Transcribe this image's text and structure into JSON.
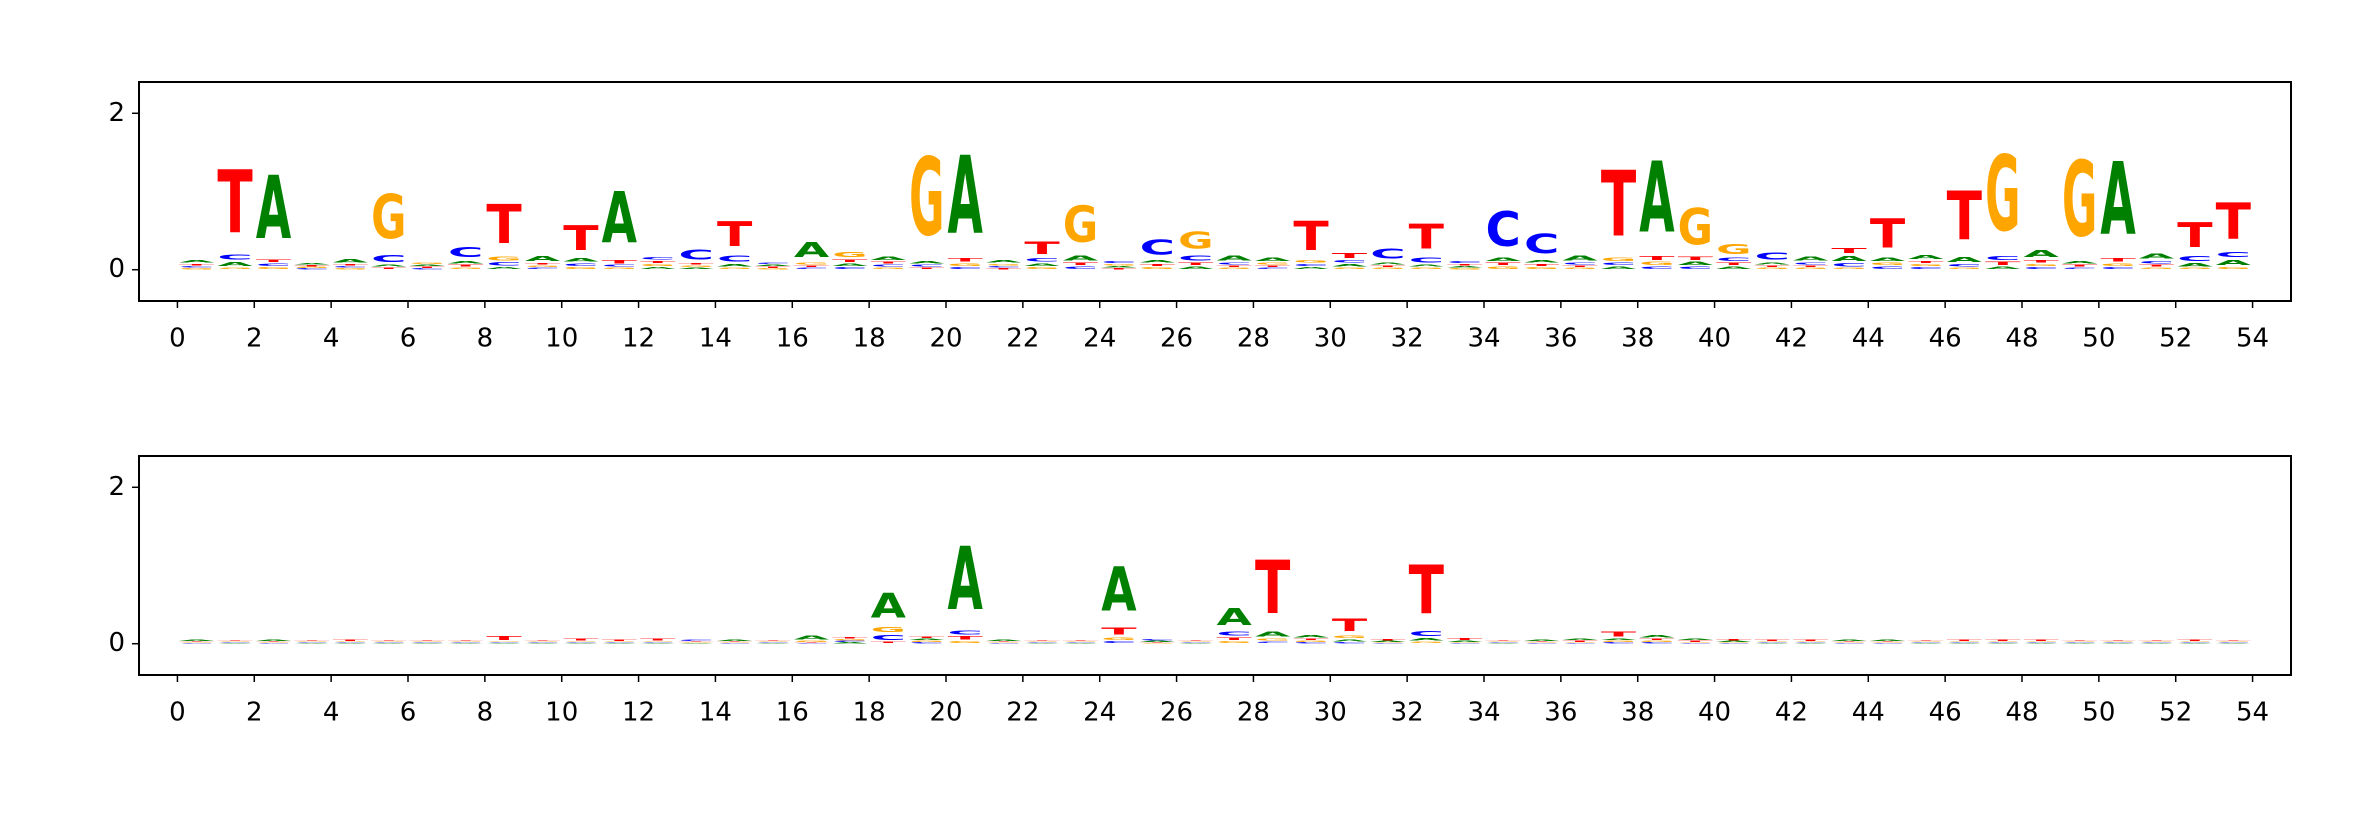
{
  "chart_data": [
    {
      "type": "logo",
      "x": [
        0.5,
        1.5,
        2.5,
        3.5,
        4.5,
        5.5,
        6.5,
        7.5,
        8.5,
        9.5,
        10.5,
        11.5,
        12.5,
        13.5,
        14.5,
        15.5,
        16.5,
        17.5,
        18.5,
        19.5,
        20.5,
        21.5,
        22.5,
        23.5,
        24.5,
        25.5,
        26.5,
        27.5,
        28.5,
        29.5,
        30.5,
        31.5,
        32.5,
        33.5,
        34.5,
        35.5,
        36.5,
        37.5,
        38.5,
        39.5,
        40.5,
        41.5,
        42.5,
        43.5,
        44.5,
        45.5,
        46.5,
        47.5,
        48.5,
        49.5,
        50.5,
        51.5,
        52.5,
        53.5
      ],
      "series": [
        {
          "name": "A",
          "color": "#008000",
          "values": [
            0.05,
            0.08,
            1.3,
            0.03,
            0.06,
            0.04,
            0.03,
            0.05,
            0.04,
            0.1,
            0.06,
            1.05,
            0.04,
            0.03,
            0.05,
            0.03,
            0.3,
            0.05,
            0.06,
            0.05,
            1.6,
            0.05,
            0.05,
            0.1,
            0.03,
            0.05,
            0.05,
            0.1,
            0.06,
            0.04,
            0.05,
            0.04,
            0.04,
            0.03,
            0.06,
            0.05,
            0.1,
            0.05,
            1.45,
            0.06,
            0.05,
            0.04,
            0.08,
            0.1,
            0.06,
            0.08,
            0.1,
            0.05,
            0.15,
            0.05,
            1.5,
            0.1,
            0.06,
            0.1
          ]
        },
        {
          "name": "C",
          "color": "#0000ff",
          "values": [
            0.03,
            0.1,
            0.05,
            0.02,
            0.03,
            0.15,
            0.02,
            0.2,
            0.06,
            0.03,
            0.05,
            0.04,
            0.05,
            0.2,
            0.12,
            0.03,
            0.03,
            0.04,
            0.04,
            0.04,
            0.04,
            0.03,
            0.06,
            0.05,
            0.04,
            0.3,
            0.1,
            0.04,
            0.03,
            0.04,
            0.05,
            0.2,
            0.1,
            0.04,
            0.7,
            0.4,
            0.04,
            0.05,
            0.05,
            0.05,
            0.06,
            0.15,
            0.04,
            0.06,
            0.05,
            0.04,
            0.05,
            0.08,
            0.04,
            0.03,
            0.04,
            0.05,
            0.1,
            0.1
          ]
        },
        {
          "name": "G",
          "color": "#ffa500",
          "values": [
            0.02,
            0.03,
            0.04,
            0.02,
            0.02,
            0.9,
            0.03,
            0.03,
            0.08,
            0.03,
            0.04,
            0.03,
            0.04,
            0.03,
            0.03,
            0.02,
            0.04,
            0.1,
            0.03,
            1.6,
            0.05,
            0.03,
            0.04,
            0.75,
            0.03,
            0.04,
            0.35,
            0.03,
            0.04,
            0.05,
            0.03,
            0.03,
            0.03,
            0.02,
            0.05,
            0.04,
            0.03,
            0.06,
            0.06,
            0.75,
            0.2,
            0.03,
            0.03,
            0.03,
            0.05,
            0.04,
            0.03,
            1.55,
            0.04,
            1.55,
            0.05,
            0.03,
            0.03,
            0.04
          ]
        },
        {
          "name": "T",
          "color": "#ff0000",
          "values": [
            0.03,
            1.3,
            0.05,
            0.02,
            0.03,
            0.03,
            0.02,
            0.04,
            0.8,
            0.03,
            0.5,
            0.06,
            0.04,
            0.03,
            0.5,
            0.02,
            0.03,
            0.05,
            0.04,
            0.03,
            0.06,
            0.02,
            0.25,
            0.05,
            0.02,
            0.04,
            0.05,
            0.03,
            0.03,
            0.6,
            0.1,
            0.03,
            0.5,
            0.03,
            0.05,
            0.04,
            0.03,
            1.35,
            0.08,
            0.06,
            0.05,
            0.03,
            0.03,
            0.1,
            0.6,
            0.04,
            1.0,
            0.06,
            0.05,
            0.04,
            0.06,
            0.04,
            0.5,
            0.75
          ]
        }
      ],
      "xlim": [
        -1,
        55
      ],
      "ylim": [
        -0.4,
        2.4
      ],
      "xticks": [
        0,
        2,
        4,
        6,
        8,
        10,
        12,
        14,
        16,
        18,
        20,
        22,
        24,
        26,
        28,
        30,
        32,
        34,
        36,
        38,
        40,
        42,
        44,
        46,
        48,
        50,
        52,
        54
      ],
      "yticks": [
        0,
        2
      ]
    },
    {
      "type": "logo",
      "x": [
        0.5,
        1.5,
        2.5,
        3.5,
        4.5,
        5.5,
        6.5,
        7.5,
        8.5,
        9.5,
        10.5,
        11.5,
        12.5,
        13.5,
        14.5,
        15.5,
        16.5,
        17.5,
        18.5,
        19.5,
        20.5,
        21.5,
        22.5,
        23.5,
        24.5,
        25.5,
        26.5,
        27.5,
        28.5,
        29.5,
        30.5,
        31.5,
        32.5,
        33.5,
        34.5,
        35.5,
        36.5,
        37.5,
        38.5,
        39.5,
        40.5,
        41.5,
        42.5,
        43.5,
        44.5,
        45.5,
        46.5,
        47.5,
        48.5,
        49.5,
        50.5,
        51.5,
        52.5,
        53.5
      ],
      "series": [
        {
          "name": "A",
          "color": "#008000",
          "values": [
            0.02,
            0.01,
            0.02,
            0.01,
            0.01,
            0.01,
            0.01,
            0.01,
            0.01,
            0.01,
            0.01,
            0.01,
            0.01,
            0.01,
            0.03,
            0.01,
            0.08,
            0.02,
            0.5,
            0.03,
            1.3,
            0.02,
            0.01,
            0.01,
            0.9,
            0.02,
            0.01,
            0.35,
            0.1,
            0.05,
            0.04,
            0.02,
            0.05,
            0.02,
            0.01,
            0.03,
            0.03,
            0.03,
            0.05,
            0.03,
            0.02,
            0.01,
            0.01,
            0.02,
            0.02,
            0.01,
            0.01,
            0.01,
            0.01,
            0.01,
            0.01,
            0.01,
            0.01,
            0.01
          ]
        },
        {
          "name": "C",
          "color": "#0000ff",
          "values": [
            0.01,
            0.01,
            0.01,
            0.01,
            0.01,
            0.01,
            0.01,
            0.01,
            0.01,
            0.01,
            0.01,
            0.01,
            0.01,
            0.02,
            0.01,
            0.01,
            0.01,
            0.02,
            0.1,
            0.02,
            0.08,
            0.01,
            0.01,
            0.01,
            0.04,
            0.02,
            0.01,
            0.08,
            0.03,
            0.02,
            0.02,
            0.01,
            0.1,
            0.01,
            0.01,
            0.01,
            0.01,
            0.02,
            0.02,
            0.01,
            0.01,
            0.01,
            0.01,
            0.01,
            0.01,
            0.01,
            0.01,
            0.01,
            0.01,
            0.01,
            0.01,
            0.01,
            0.01,
            0.01
          ]
        },
        {
          "name": "G",
          "color": "#ffa500",
          "values": [
            0.01,
            0.01,
            0.01,
            0.01,
            0.01,
            0.01,
            0.01,
            0.01,
            0.01,
            0.01,
            0.01,
            0.01,
            0.01,
            0.01,
            0.01,
            0.01,
            0.02,
            0.02,
            0.1,
            0.02,
            0.04,
            0.01,
            0.01,
            0.01,
            0.05,
            0.01,
            0.01,
            0.04,
            0.04,
            0.02,
            0.05,
            0.01,
            0.03,
            0.01,
            0.01,
            0.01,
            0.01,
            0.02,
            0.02,
            0.01,
            0.01,
            0.01,
            0.01,
            0.01,
            0.01,
            0.01,
            0.01,
            0.01,
            0.01,
            0.01,
            0.01,
            0.01,
            0.01,
            0.01
          ]
        },
        {
          "name": "T",
          "color": "#ff0000",
          "values": [
            0.01,
            0.01,
            0.01,
            0.01,
            0.02,
            0.01,
            0.01,
            0.01,
            0.08,
            0.01,
            0.04,
            0.02,
            0.04,
            0.01,
            0.01,
            0.01,
            0.01,
            0.02,
            0.03,
            0.03,
            0.06,
            0.01,
            0.01,
            0.01,
            0.15,
            0.01,
            0.01,
            0.05,
            1.1,
            0.03,
            0.25,
            0.02,
            1.0,
            0.04,
            0.01,
            0.01,
            0.02,
            0.1,
            0.03,
            0.02,
            0.02,
            0.02,
            0.02,
            0.01,
            0.01,
            0.01,
            0.02,
            0.02,
            0.02,
            0.01,
            0.01,
            0.01,
            0.02,
            0.01
          ]
        }
      ],
      "xlim": [
        -1,
        55
      ],
      "ylim": [
        -0.4,
        2.4
      ],
      "xticks": [
        0,
        2,
        4,
        6,
        8,
        10,
        12,
        14,
        16,
        18,
        20,
        22,
        24,
        26,
        28,
        30,
        32,
        34,
        36,
        38,
        40,
        42,
        44,
        46,
        48,
        50,
        52,
        54
      ],
      "yticks": [
        0,
        2
      ]
    }
  ]
}
